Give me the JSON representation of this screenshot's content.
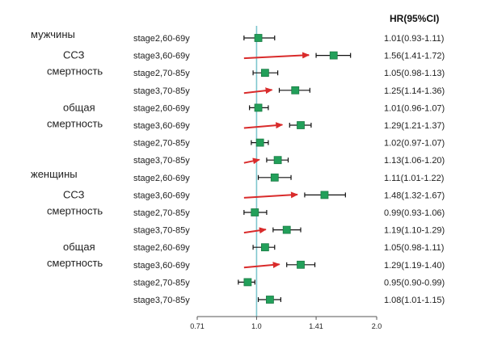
{
  "chart_data": {
    "type": "forest",
    "header": "HR(95%CI)",
    "x_ticks": [
      0.71,
      1.0,
      1.41,
      2.0
    ],
    "x_tick_labels": [
      "0.71",
      "1.0",
      "1.41",
      "2.0"
    ],
    "x_scale": "log",
    "xlim": [
      0.71,
      2.0
    ],
    "reference_line": 1.0,
    "groups": [
      {
        "lines": [
          "мужчины"
        ],
        "row": 0,
        "indent": false
      },
      {
        "lines": [
          "ССЗ",
          "смертность"
        ],
        "row": 1,
        "indent": true
      },
      {
        "lines": [
          "общая",
          "смертность"
        ],
        "row": 4,
        "indent": true
      },
      {
        "lines": [
          "женщины"
        ],
        "row": 8,
        "indent": false
      },
      {
        "lines": [
          "ССЗ",
          "смертность"
        ],
        "row": 9,
        "indent": true
      },
      {
        "lines": [
          "общая",
          "смертность"
        ],
        "row": 12,
        "indent": true
      }
    ],
    "rows": [
      {
        "label": "stage2,60-69y",
        "hr": 1.01,
        "lo": 0.93,
        "hi": 1.11,
        "text": "1.01(0.93-1.11)",
        "arrow": false
      },
      {
        "label": "stage3,60-69y",
        "hr": 1.56,
        "lo": 1.41,
        "hi": 1.72,
        "text": "1.56(1.41-1.72)",
        "arrow": true
      },
      {
        "label": "stage2,70-85y",
        "hr": 1.05,
        "lo": 0.98,
        "hi": 1.13,
        "text": "1.05(0.98-1.13)",
        "arrow": false
      },
      {
        "label": "stage3,70-85y",
        "hr": 1.25,
        "lo": 1.14,
        "hi": 1.36,
        "text": "1.25(1.14-1.36)",
        "arrow": true
      },
      {
        "label": "stage2,60-69y",
        "hr": 1.01,
        "lo": 0.96,
        "hi": 1.07,
        "text": "1.01(0.96-1.07)",
        "arrow": false
      },
      {
        "label": "stage3,60-69y",
        "hr": 1.29,
        "lo": 1.21,
        "hi": 1.37,
        "text": "1.29(1.21-1.37)",
        "arrow": true
      },
      {
        "label": "stage2,70-85y",
        "hr": 1.02,
        "lo": 0.97,
        "hi": 1.07,
        "text": "1.02(0.97-1.07)",
        "arrow": false
      },
      {
        "label": "stage3,70-85y",
        "hr": 1.13,
        "lo": 1.06,
        "hi": 1.2,
        "text": "1.13(1.06-1.20)",
        "arrow": true
      },
      {
        "label": "stage2,60-69y",
        "hr": 1.11,
        "lo": 1.01,
        "hi": 1.22,
        "text": "1.11(1.01-1.22)",
        "arrow": false
      },
      {
        "label": "stage3,60-69y",
        "hr": 1.48,
        "lo": 1.32,
        "hi": 1.67,
        "text": "1.48(1.32-1.67)",
        "arrow": true
      },
      {
        "label": "stage2,70-85y",
        "hr": 0.99,
        "lo": 0.93,
        "hi": 1.06,
        "text": "0.99(0.93-1.06)",
        "arrow": false
      },
      {
        "label": "stage3,70-85y",
        "hr": 1.19,
        "lo": 1.1,
        "hi": 1.29,
        "text": "1.19(1.10-1.29)",
        "arrow": true
      },
      {
        "label": "stage2,60-69y",
        "hr": 1.05,
        "lo": 0.98,
        "hi": 1.11,
        "text": "1.05(0.98-1.11)",
        "arrow": false
      },
      {
        "label": "stage3,60-69y",
        "hr": 1.29,
        "lo": 1.19,
        "hi": 1.4,
        "text": "1.29(1.19-1.40)",
        "arrow": true
      },
      {
        "label": "stage2,70-85y",
        "hr": 0.95,
        "lo": 0.9,
        "hi": 0.99,
        "text": "0.95(0.90-0.99)",
        "arrow": false
      },
      {
        "label": "stage3,70-85y",
        "hr": 1.08,
        "lo": 1.01,
        "hi": 1.15,
        "text": "1.08(1.01-1.15)",
        "arrow": false
      }
    ],
    "colors": {
      "marker": "#22a05a",
      "marker_edge": "#1b7a44",
      "whisker": "#111111",
      "reference": "#7ec6cf",
      "arrow": "#d92b2b",
      "axis": "#555555"
    }
  }
}
